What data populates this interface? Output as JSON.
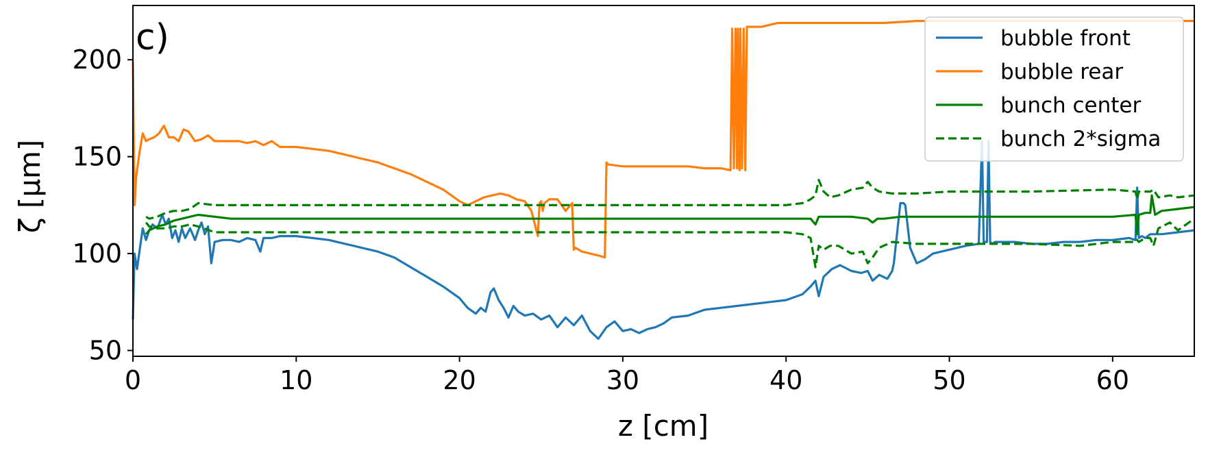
{
  "chart_data": {
    "type": "line",
    "panel_label": "c)",
    "xlabel": "z [cm]",
    "ylabel": "ζ [μm]",
    "xlim": [
      0,
      65
    ],
    "ylim": [
      47,
      228
    ],
    "xticks": [
      0,
      10,
      20,
      30,
      40,
      50,
      60
    ],
    "yticks": [
      50,
      100,
      150,
      200
    ],
    "grid": false,
    "legend_position": "top-right",
    "series": [
      {
        "name": "bubble front",
        "color": "#1f77b4",
        "dash": "solid",
        "x": [
          0,
          0.1,
          0.25,
          0.4,
          0.6,
          0.8,
          1.0,
          1.2,
          1.5,
          1.8,
          2.0,
          2.2,
          2.4,
          2.6,
          2.8,
          3.0,
          3.2,
          3.5,
          3.8,
          4.0,
          4.2,
          4.4,
          4.6,
          4.8,
          5.0,
          5.5,
          6.0,
          6.5,
          7.0,
          7.5,
          7.8,
          8.0,
          8.5,
          9.0,
          10.0,
          11.0,
          12.0,
          13.0,
          14.0,
          15.0,
          16.0,
          17.0,
          18.0,
          19.0,
          20.0,
          20.5,
          21.0,
          21.3,
          21.6,
          21.9,
          22.1,
          22.4,
          22.7,
          23.0,
          23.3,
          23.6,
          24.0,
          24.5,
          25.0,
          25.5,
          26.0,
          26.5,
          27.0,
          27.5,
          28.0,
          28.5,
          29.0,
          29.5,
          30.0,
          30.5,
          31.0,
          31.5,
          32.0,
          32.5,
          33.0,
          34.0,
          35.0,
          36.0,
          37.0,
          38.0,
          39.0,
          40.0,
          41.0,
          41.5,
          41.8,
          42.0,
          42.3,
          42.8,
          43.3,
          44.0,
          44.6,
          45.0,
          45.3,
          45.7,
          46.2,
          46.5,
          46.6,
          47.0,
          47.2,
          47.3,
          47.6,
          48.0,
          48.5,
          49.0,
          50.0,
          51.0,
          51.8,
          52.0,
          52.1,
          52.3,
          52.4,
          52.5,
          52.6,
          52.8,
          53.0,
          54.0,
          55.0,
          56.0,
          57.0,
          58.0,
          59.0,
          60.0,
          61.0,
          61.4,
          61.5,
          61.6,
          61.8,
          62.0,
          62.3,
          63.0,
          64.0,
          65.0
        ],
        "y": [
          66,
          100,
          92,
          101,
          113,
          107,
          112,
          115,
          113,
          120,
          115,
          118,
          108,
          112,
          106,
          113,
          108,
          113,
          107,
          112,
          116,
          110,
          114,
          95,
          106,
          107,
          107,
          106,
          108,
          107,
          101,
          108,
          108,
          109,
          109,
          108,
          107,
          105,
          103,
          101,
          98,
          93,
          88,
          83,
          77,
          72,
          69,
          72,
          70,
          80,
          82,
          76,
          72,
          67,
          73,
          70,
          68,
          69,
          66,
          68,
          62,
          67,
          63,
          68,
          60,
          56,
          62,
          65,
          60,
          61,
          59,
          61,
          62,
          64,
          67,
          68,
          71,
          72,
          73,
          74,
          75,
          76,
          79,
          83,
          86,
          78,
          88,
          92,
          94,
          91,
          90,
          91,
          86,
          89,
          87,
          91,
          95,
          126,
          126,
          125,
          103,
          95,
          97,
          100,
          102,
          104,
          105,
          158,
          106,
          106,
          158,
          106,
          105,
          106,
          106,
          106,
          105,
          105,
          106,
          106,
          107,
          107,
          108,
          107,
          134,
          108,
          109,
          108,
          110,
          110,
          111,
          112
        ]
      },
      {
        "name": "bubble rear",
        "color": "#ff7f0e",
        "dash": "solid",
        "x": [
          0,
          0.1,
          0.2,
          0.4,
          0.6,
          0.8,
          1.0,
          1.3,
          1.6,
          1.9,
          2.2,
          2.5,
          2.8,
          3.1,
          3.4,
          3.8,
          4.2,
          4.6,
          5.0,
          5.5,
          6.0,
          6.5,
          7.0,
          7.5,
          8.0,
          8.5,
          9.0,
          10.0,
          11.0,
          12.0,
          13.0,
          14.0,
          15.0,
          16.0,
          17.0,
          18.0,
          19.0,
          19.5,
          20.0,
          20.5,
          21.0,
          21.5,
          22.0,
          22.5,
          23.0,
          23.5,
          24.0,
          24.4,
          24.8,
          24.9,
          25.0,
          25.1,
          25.2,
          25.5,
          26.0,
          26.5,
          26.9,
          27.0,
          27.1,
          27.5,
          28.0,
          28.5,
          28.9,
          29.0,
          29.1,
          30.0,
          31.0,
          32.0,
          33.0,
          34.0,
          35.0,
          36.0,
          36.6,
          36.7,
          36.8,
          36.9,
          37.0,
          37.05,
          37.15,
          37.2,
          37.3,
          37.4,
          37.5,
          37.6,
          38.0,
          38.5,
          39.0,
          39.5,
          40.0,
          41.0,
          42.0,
          44.0,
          46.0,
          48.0,
          50.0,
          52.0,
          55.0,
          58.0,
          61.0,
          63.0,
          65.0
        ],
        "y": [
          199,
          125,
          140,
          152,
          162,
          158,
          159,
          160,
          162,
          166,
          160,
          160,
          158,
          164,
          163,
          158,
          159,
          161,
          158,
          158,
          158,
          158,
          157,
          158,
          156,
          158,
          155,
          155,
          154,
          153,
          151,
          149,
          147,
          144,
          141,
          137,
          133,
          130,
          127,
          125,
          127,
          129,
          130,
          131,
          130,
          128,
          127,
          122,
          109,
          126,
          127,
          122,
          126,
          128,
          128,
          122,
          126,
          102,
          103,
          101,
          100,
          99,
          98,
          147,
          146,
          145,
          145,
          145,
          145,
          145,
          144,
          144,
          143,
          216,
          144,
          216,
          144,
          216,
          143,
          216,
          144,
          216,
          143,
          217,
          217,
          217,
          218,
          219,
          219,
          219,
          219,
          219,
          219,
          220,
          220,
          220,
          220,
          220,
          220,
          220,
          220
        ]
      },
      {
        "name": "bunch center",
        "color": "#008000",
        "dash": "solid",
        "x": [
          0.8,
          1.0,
          1.5,
          2.0,
          2.5,
          3.0,
          3.5,
          4.0,
          5.0,
          6.0,
          8.0,
          10.0,
          20.0,
          30.0,
          40.0,
          41.5,
          41.8,
          42.0,
          42.5,
          43.0,
          44.0,
          45.0,
          45.3,
          45.6,
          46.0,
          47.0,
          50.0,
          55.0,
          60.0,
          61.4,
          61.5,
          61.6,
          62.0,
          62.3,
          62.4,
          62.6,
          63.0,
          64.0,
          65.0
        ],
        "y": [
          110,
          112,
          114,
          115,
          117,
          118,
          119,
          120,
          119,
          118,
          118,
          118,
          118,
          118,
          118,
          118,
          115,
          119,
          119,
          119,
          119,
          118,
          116,
          118,
          118,
          119,
          119,
          119,
          119,
          120,
          110,
          120,
          121,
          121,
          130,
          120,
          122,
          123,
          124
        ]
      },
      {
        "name": "bunch 2*sigma",
        "color": "#008000",
        "dash": "dashed",
        "x": [
          0.8,
          1.0,
          1.5,
          2.0,
          2.5,
          3.0,
          3.5,
          4.0,
          5.0,
          10.0,
          20.0,
          30.0,
          40.0,
          41.0,
          41.5,
          41.8,
          42.0,
          42.3,
          42.7,
          43.2,
          44.0,
          44.7,
          45.0,
          45.3,
          45.7,
          46.5,
          48.0,
          50.0,
          55.0,
          60.0,
          61.4,
          61.5,
          61.6,
          62.0,
          62.3,
          62.5,
          62.8,
          63.5,
          64.0,
          65.0
        ],
        "y": [
          119,
          118,
          119,
          121,
          122,
          122,
          123,
          126,
          125,
          125,
          125,
          125,
          125,
          126,
          128,
          130,
          138,
          132,
          129,
          130,
          133,
          134,
          137,
          134,
          132,
          131,
          131,
          132,
          132,
          133,
          132,
          128,
          132,
          132,
          132,
          133,
          129,
          130,
          129,
          130
        ]
      },
      {
        "name": "",
        "color": "#008000",
        "dash": "dashed",
        "x": [
          0.8,
          1.0,
          1.5,
          2.0,
          2.5,
          3.0,
          3.5,
          4.0,
          5.0,
          10.0,
          20.0,
          30.0,
          40.0,
          41.0,
          41.5,
          41.8,
          42.0,
          42.3,
          42.7,
          43.2,
          44.0,
          44.7,
          45.0,
          45.3,
          45.7,
          46.5,
          48.0,
          50.0,
          52.0,
          55.0,
          58.0,
          60.0,
          61.4,
          61.5,
          61.6,
          62.0,
          62.3,
          62.5,
          62.8,
          63.5,
          64.0,
          65.0
        ],
        "y": [
          116,
          114,
          113,
          113,
          114,
          114,
          115,
          114,
          111,
          111,
          111,
          111,
          111,
          110,
          108,
          93,
          104,
          102,
          104,
          104,
          100,
          101,
          95,
          98,
          103,
          106,
          105,
          105,
          105,
          105,
          104,
          106,
          106,
          107,
          106,
          108,
          108,
          104,
          113,
          116,
          112,
          118
        ]
      }
    ]
  }
}
